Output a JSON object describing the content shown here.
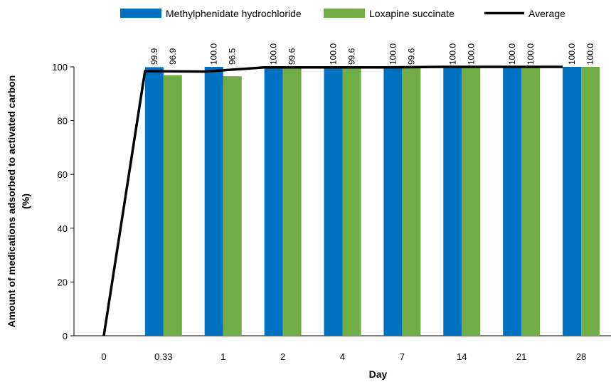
{
  "chart_data": {
    "type": "bar",
    "title": "",
    "xlabel": "Day",
    "ylabel": "Amount of medications adsorbed to activated carbon (%)",
    "ylabel_lines": [
      "Amount of medications adsorbed to activated carbon",
      "(%)"
    ],
    "ylim": [
      0,
      100
    ],
    "yticks": [
      0,
      20,
      40,
      60,
      80,
      100
    ],
    "categories": [
      "0",
      "0.33",
      "1",
      "2",
      "4",
      "7",
      "14",
      "21",
      "28"
    ],
    "series": [
      {
        "name": "Methylphenidate hydrochloride",
        "color": "#0070c0",
        "values": [
          null,
          99.9,
          100.0,
          100.0,
          100.0,
          100.0,
          100.0,
          100.0,
          100.0
        ],
        "labels": [
          "",
          "99.9",
          "100.0",
          "100.0",
          "100.0",
          "100.0",
          "100.0",
          "100.0",
          "100.0"
        ]
      },
      {
        "name": "Loxapine succinate",
        "color": "#70ad47",
        "values": [
          null,
          96.9,
          96.5,
          99.6,
          99.6,
          99.6,
          100.0,
          100.0,
          100.0
        ],
        "labels": [
          "",
          "96.9",
          "96.5",
          "99.6",
          "99.6",
          "99.6",
          "100.0",
          "100.0",
          "100.0"
        ]
      }
    ],
    "line": {
      "name": "Average",
      "color": "#000000",
      "values": [
        0,
        98.4,
        98.25,
        99.8,
        99.8,
        99.8,
        100.0,
        100.0,
        100.0
      ]
    },
    "legend_position": "top-center",
    "grid": false
  }
}
